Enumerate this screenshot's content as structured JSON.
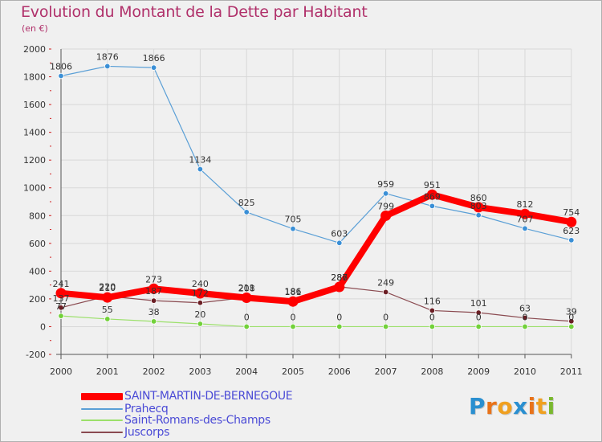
{
  "chart_data": {
    "type": "line",
    "title": "Evolution du Montant de la Dette par Habitant",
    "subtitle": "(en €)",
    "xlabel": "",
    "ylabel": "",
    "ylim": [
      -200,
      2000
    ],
    "yticks": [
      -200,
      0,
      200,
      400,
      600,
      800,
      1000,
      1200,
      1400,
      1600,
      1800,
      2000
    ],
    "categories": [
      "2000",
      "2001",
      "2002",
      "2003",
      "2004",
      "2005",
      "2006",
      "2007",
      "2008",
      "2009",
      "2010",
      "2011"
    ],
    "grid": true,
    "legend_position": "bottom",
    "series": [
      {
        "name": "Juscorps",
        "color": "#6b1e24",
        "line_color": "#8a4a50",
        "values": [
          137,
          220,
          187,
          172,
          211,
          186,
          287,
          249,
          116,
          101,
          63,
          39
        ]
      },
      {
        "name": "Saint-Romans-des-Champs",
        "color": "#72d13a",
        "line_color": "#9be06a",
        "values": [
          77,
          55,
          38,
          20,
          0,
          0,
          0,
          0,
          0,
          0,
          0,
          0
        ]
      },
      {
        "name": "Prahecq",
        "color": "#3a8fd6",
        "line_color": "#5a9fd6",
        "values": [
          1806,
          1876,
          1866,
          1134,
          825,
          705,
          603,
          959,
          869,
          803,
          707,
          623
        ]
      },
      {
        "name": "SAINT-MARTIN-DE-BERNEGOUE",
        "color": "#ff0000",
        "line_color": "#ff0000",
        "values": [
          241,
          210,
          273,
          240,
          208,
          181,
          286,
          799,
          951,
          860,
          812,
          754
        ]
      }
    ]
  },
  "legend": [
    {
      "label": "SAINT-MARTIN-DE-BERNEGOUE",
      "color": "#ff0000"
    },
    {
      "label": "Prahecq",
      "color": "#5a9fd6"
    },
    {
      "label": "Saint-Romans-des-Champs",
      "color": "#9be06a"
    },
    {
      "label": "Juscorps",
      "color": "#8a4a50"
    }
  ],
  "brand": {
    "letters": [
      {
        "ch": "P",
        "color": "#2a8fd0"
      },
      {
        "ch": "r",
        "color": "#e8731a"
      },
      {
        "ch": "o",
        "color": "#f0a020"
      },
      {
        "ch": "x",
        "color": "#2a8fd0"
      },
      {
        "ch": "i",
        "color": "#e8731a"
      },
      {
        "ch": "t",
        "color": "#f0a020"
      },
      {
        "ch": "i",
        "color": "#7ab82e"
      }
    ]
  }
}
